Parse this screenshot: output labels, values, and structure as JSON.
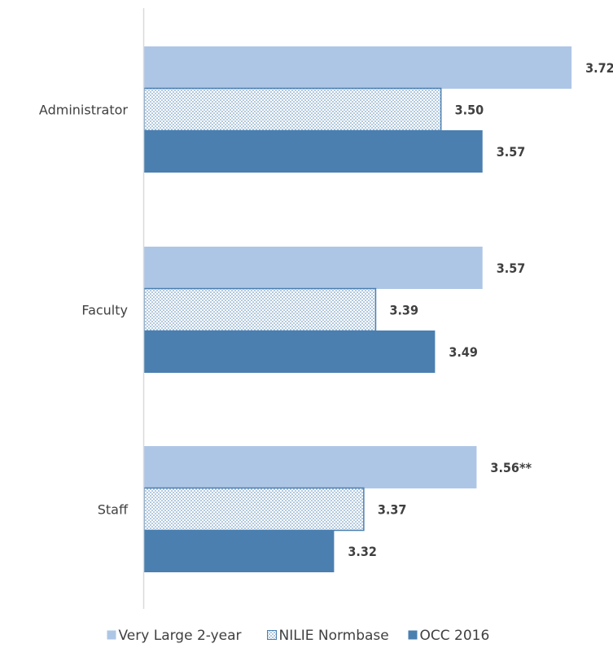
{
  "chart_data": {
    "type": "bar",
    "orientation": "horizontal",
    "categories": [
      "Administrator",
      "Faculty",
      "Staff"
    ],
    "series": [
      {
        "name": "Very Large 2-year",
        "values": [
          3.72,
          3.57,
          3.56
        ],
        "labels": [
          "3.72",
          "3.57",
          "3.56**"
        ],
        "color": "#aec6e6",
        "pattern": "solid"
      },
      {
        "name": "NILIE Normbase",
        "values": [
          3.5,
          3.39,
          3.37
        ],
        "labels": [
          "3.50",
          "3.39",
          "3.37"
        ],
        "color": "#4a7fb0",
        "pattern": "dotted"
      },
      {
        "name": "OCC 2016",
        "values": [
          3.57,
          3.49,
          3.32
        ],
        "labels": [
          "3.57",
          "3.49",
          "3.32"
        ],
        "color": "#4a7fb0",
        "pattern": "solid"
      }
    ],
    "xlim": [
      3.0,
      3.75
    ],
    "xaxis_visible": false,
    "grid": false,
    "legend_position": "bottom",
    "title": "",
    "xlabel": "",
    "ylabel": ""
  }
}
